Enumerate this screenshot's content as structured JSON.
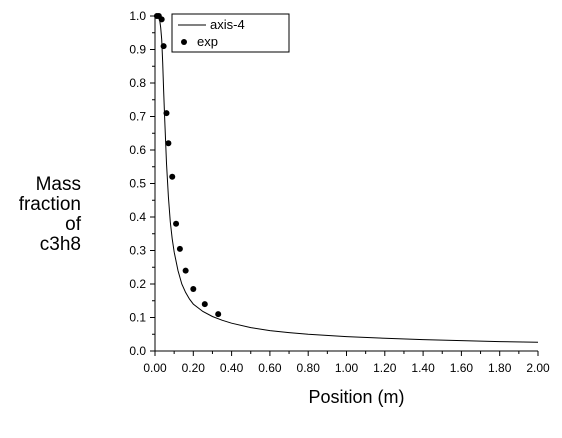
{
  "chart_data": {
    "type": "scatter",
    "xlabel": "Position (m)",
    "ylabel_lines": [
      "Mass",
      "fraction",
      "of",
      "c3h8"
    ],
    "xlim": [
      0,
      2
    ],
    "ylim": [
      0,
      1
    ],
    "x_ticks": [
      "0.00",
      "0.20",
      "0.40",
      "0.60",
      "0.80",
      "1.00",
      "1.20",
      "1.40",
      "1.60",
      "1.80",
      "2.00"
    ],
    "y_ticks": [
      "0.0",
      "0.1",
      "0.2",
      "0.3",
      "0.4",
      "0.5",
      "0.6",
      "0.7",
      "0.8",
      "0.9",
      "1.0"
    ],
    "legend_position": "top-left",
    "series": [
      {
        "name": "axis-4",
        "style": "line",
        "color": "#000000",
        "x": [
          0.0,
          0.005,
          0.01,
          0.015,
          0.02,
          0.025,
          0.03,
          0.035,
          0.04,
          0.045,
          0.05,
          0.06,
          0.07,
          0.08,
          0.09,
          0.1,
          0.12,
          0.14,
          0.16,
          0.18,
          0.2,
          0.25,
          0.3,
          0.35,
          0.4,
          0.5,
          0.6,
          0.7,
          0.8,
          1.0,
          1.2,
          1.4,
          1.6,
          1.8,
          2.0
        ],
        "y": [
          1.0,
          1.0,
          1.0,
          1.0,
          0.995,
          0.985,
          0.965,
          0.93,
          0.86,
          0.78,
          0.7,
          0.56,
          0.46,
          0.385,
          0.335,
          0.295,
          0.24,
          0.2,
          0.175,
          0.155,
          0.14,
          0.118,
          0.103,
          0.092,
          0.083,
          0.07,
          0.061,
          0.055,
          0.05,
          0.043,
          0.038,
          0.034,
          0.031,
          0.028,
          0.026
        ]
      },
      {
        "name": "exp",
        "style": "marker",
        "color": "#000000",
        "x": [
          0.01,
          0.02,
          0.035,
          0.045,
          0.06,
          0.07,
          0.09,
          0.11,
          0.13,
          0.16,
          0.2,
          0.26,
          0.33
        ],
        "y": [
          1.0,
          1.0,
          0.99,
          0.91,
          0.71,
          0.62,
          0.52,
          0.38,
          0.305,
          0.24,
          0.185,
          0.14,
          0.11
        ]
      }
    ]
  }
}
